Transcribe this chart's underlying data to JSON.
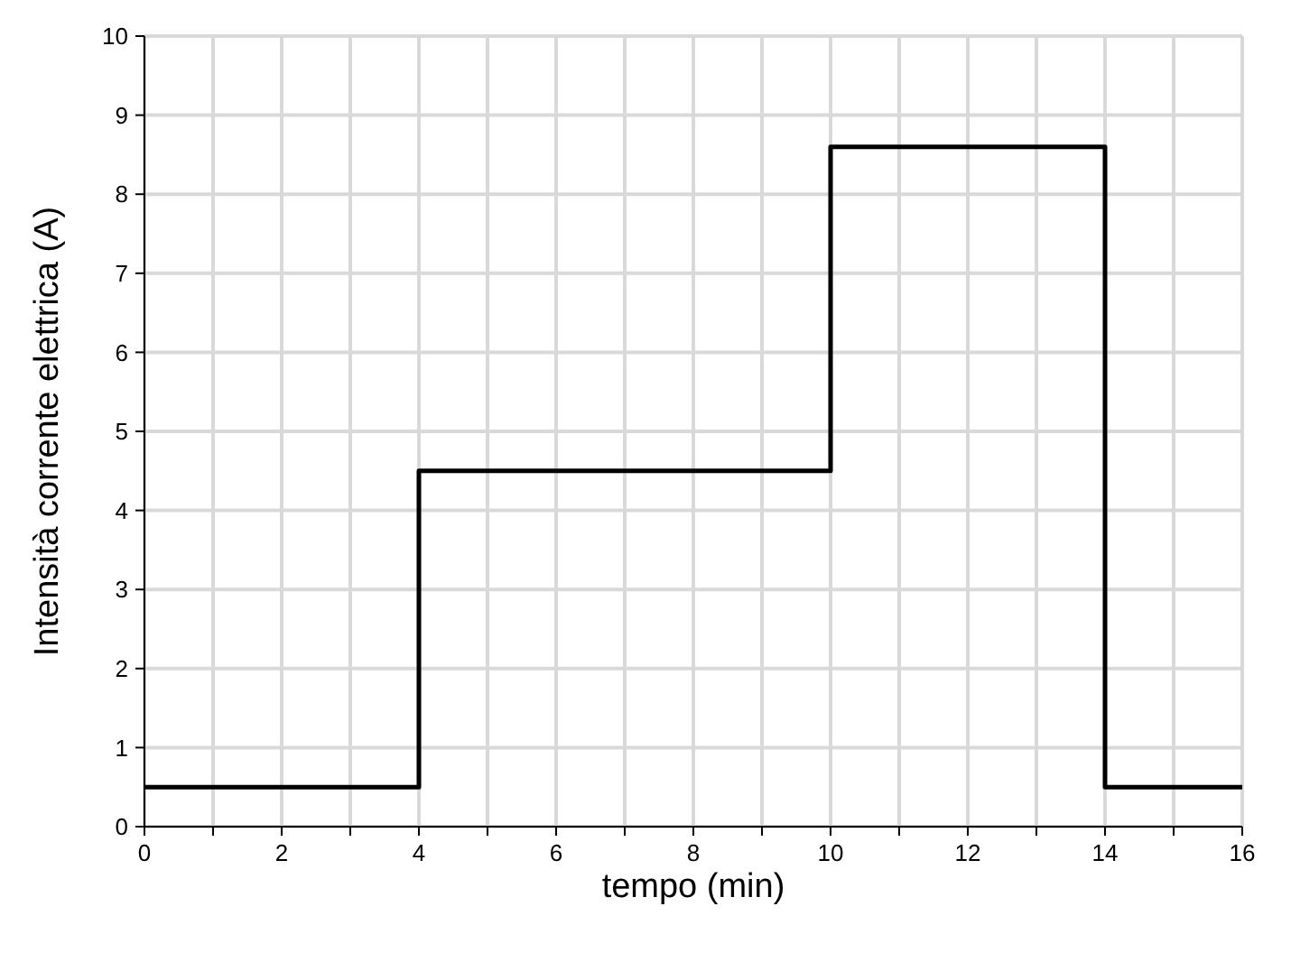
{
  "chart_data": {
    "type": "step",
    "xlabel": "tempo (min)",
    "ylabel": "Intensità corrente elettrica (A)",
    "x": [
      0,
      4,
      10,
      14,
      16
    ],
    "series": [
      {
        "color": "#000000",
        "values": [
          0.5,
          4.5,
          8.6,
          0.5,
          0.5
        ]
      }
    ],
    "xlim": [
      0,
      16
    ],
    "xticks": [
      0,
      {
        "value": 1,
        "label": null
      },
      2,
      {
        "value": 3,
        "label": null
      },
      4,
      {
        "value": 5,
        "label": null
      },
      6,
      {
        "value": 7,
        "label": null
      },
      8,
      {
        "value": 9,
        "label": null
      },
      10,
      {
        "value": 11,
        "label": null
      },
      12,
      {
        "value": 13,
        "label": null
      },
      14,
      {
        "value": 15,
        "label": null
      },
      16
    ],
    "ylim": [
      0,
      10
    ],
    "yticks": [
      0,
      1,
      2,
      3,
      4,
      5,
      6,
      7,
      8,
      9,
      10
    ],
    "grid": true,
    "marker": "none",
    "line_style": "solid"
  }
}
